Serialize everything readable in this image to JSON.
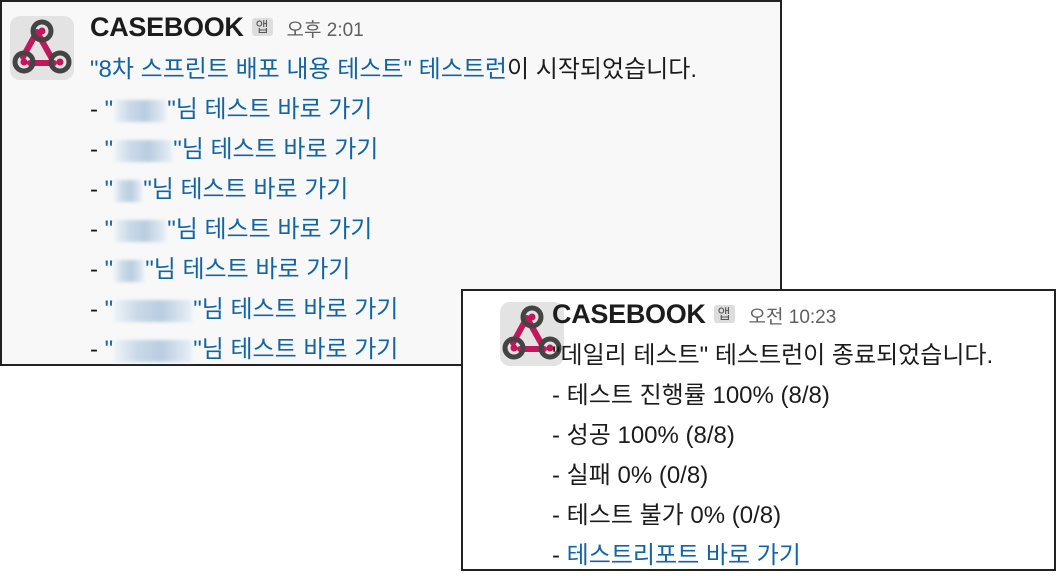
{
  "message1": {
    "sender": "CASEBOOK",
    "badge": "앱",
    "time": "오후 2:01",
    "intro_link": "\"8차 스프린트 배포 내용 테스트\" 테스트런",
    "intro_suffix": "이 시작되었습니다.",
    "user_links": [
      {
        "prefix": "- ",
        "open_quote": "\"",
        "link_text": "\"님 테스트 바로 가기"
      },
      {
        "prefix": "- ",
        "open_quote": "\"",
        "link_text": "\"님 테스트 바로 가기"
      },
      {
        "prefix": "- ",
        "open_quote": "\"",
        "link_text": "\"님 테스트 바로 가기"
      },
      {
        "prefix": "- ",
        "open_quote": "\"",
        "link_text": "\"님 테스트 바로 가기"
      },
      {
        "prefix": "- ",
        "open_quote": "\"",
        "link_text": "\"님 테스트 바로 가기"
      },
      {
        "prefix": "- ",
        "open_quote": "\"",
        "link_text": "\"님 테스트 바로 가기"
      },
      {
        "prefix": "- ",
        "open_quote": "\"",
        "link_text": "\"님 테스트 바로 가기"
      }
    ]
  },
  "message2": {
    "sender": "CASEBOOK",
    "badge": "앱",
    "time": "오전 10:23",
    "intro": "\"데일리 테스트\" 테스트런이 종료되었습니다.",
    "stats": [
      "- 테스트 진행률 100% (8/8)",
      "- 성공 100% (8/8)",
      "- 실패 0% (0/8)",
      "- 테스트 불가 0% (0/8)"
    ],
    "report_prefix": "- ",
    "report_link": "테스트리포트 바로 가기"
  },
  "colors": {
    "link": "#1264a3",
    "text": "#1d1c1d",
    "timestamp": "#616061",
    "webhook_icon": "#c1185b"
  },
  "icons": {
    "avatar": "webhook-icon"
  }
}
